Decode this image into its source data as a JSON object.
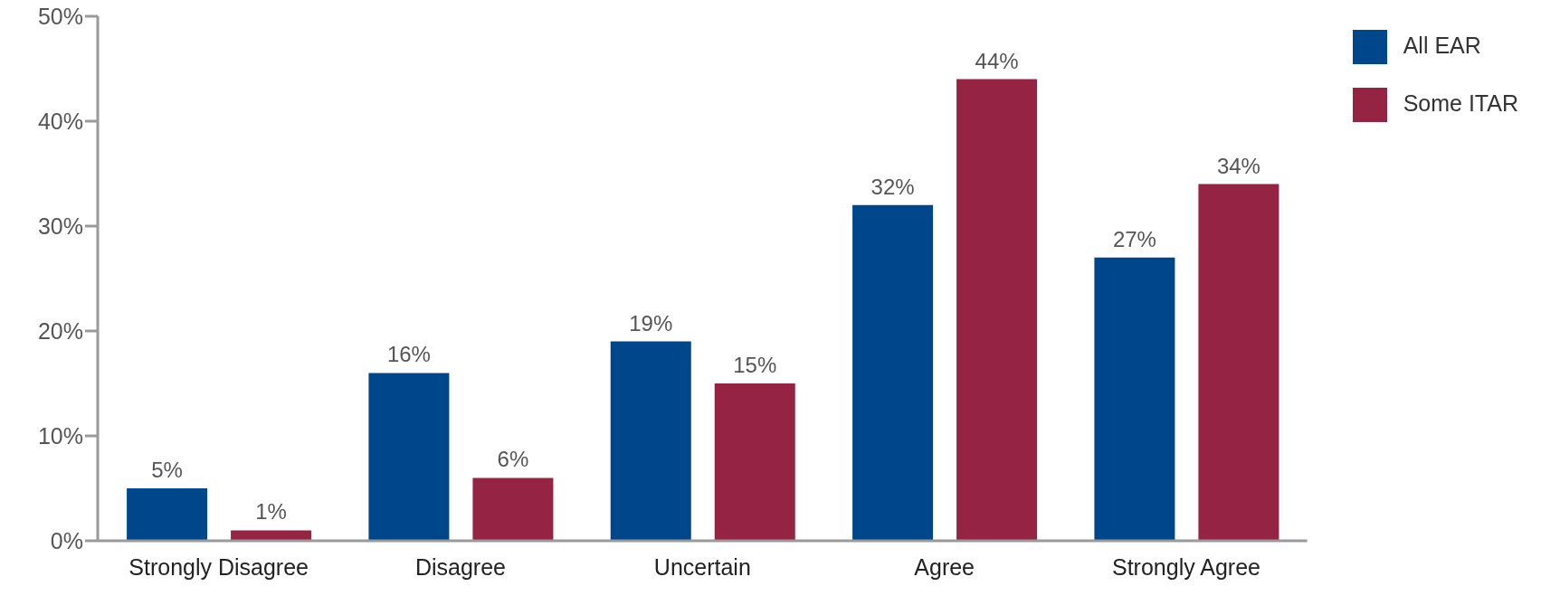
{
  "chart_data": {
    "type": "bar",
    "categories": [
      "Strongly Disagree",
      "Disagree",
      "Uncertain",
      "Agree",
      "Strongly Agree"
    ],
    "series": [
      {
        "name": "All EAR",
        "color": "#00468b",
        "values": [
          5,
          16,
          19,
          32,
          27
        ],
        "value_labels": [
          "5%",
          "16%",
          "19%",
          "32%",
          "27%"
        ]
      },
      {
        "name": "Some ITAR",
        "color": "#952343",
        "values": [
          1,
          6,
          15,
          44,
          34
        ],
        "value_labels": [
          "1%",
          "6%",
          "15%",
          "44%",
          "34%"
        ]
      }
    ],
    "ylim": [
      0,
      50
    ],
    "yticks": [
      {
        "value": 0,
        "label": "0%"
      },
      {
        "value": 10,
        "label": "10%"
      },
      {
        "value": 20,
        "label": "20%"
      },
      {
        "value": 30,
        "label": "30%"
      },
      {
        "value": 40,
        "label": "40%"
      },
      {
        "value": 50,
        "label": "50%"
      }
    ],
    "grid": false,
    "legend": "top right"
  }
}
